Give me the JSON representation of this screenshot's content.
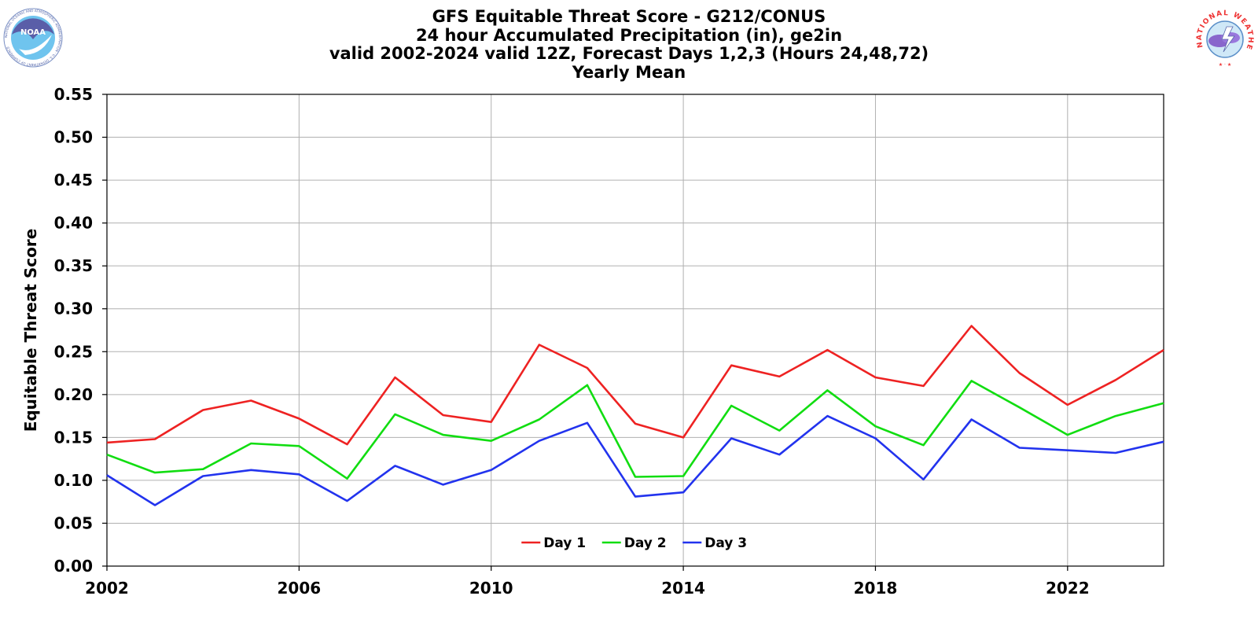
{
  "title_lines": [
    "GFS Equitable Threat Score - G212/CONUS",
    "24 hour Accumulated Precipitation (in), ge2in",
    "valid 2002-2024 valid 12Z, Forecast Days 1,2,3 (Hours 24,48,72)",
    "Yearly Mean"
  ],
  "logos": {
    "left": {
      "name": "noaa-logo",
      "text": "NOAA",
      "ring_text": "NATIONAL OCEANIC AND ATMOSPHERIC ADMINISTRATION · U.S. DEPARTMENT OF COMMERCE"
    },
    "right": {
      "name": "nws-logo",
      "ring_text": "NATIONAL WEATHER SERVICE"
    }
  },
  "chart_data": {
    "type": "line",
    "title": "GFS Equitable Threat Score - G212/CONUS",
    "xlabel": "",
    "ylabel": "Equitable Threat Score",
    "xlim": [
      2002,
      2024
    ],
    "ylim": [
      0,
      0.55
    ],
    "grid": true,
    "legend_position": "bottom-center",
    "x_ticks": [
      2002,
      2006,
      2010,
      2014,
      2018,
      2022
    ],
    "y_ticks": [
      "0.00",
      "0.05",
      "0.10",
      "0.15",
      "0.20",
      "0.25",
      "0.30",
      "0.35",
      "0.40",
      "0.45",
      "0.50",
      "0.55"
    ],
    "x": [
      2002,
      2003,
      2004,
      2005,
      2006,
      2007,
      2008,
      2009,
      2010,
      2011,
      2012,
      2013,
      2014,
      2015,
      2016,
      2017,
      2018,
      2019,
      2020,
      2021,
      2022,
      2023,
      2024
    ],
    "series": [
      {
        "name": "Day 1",
        "color": "#ee2222",
        "values": [
          0.144,
          0.148,
          0.182,
          0.193,
          0.172,
          0.142,
          0.22,
          0.176,
          0.168,
          0.258,
          0.231,
          0.166,
          0.15,
          0.234,
          0.221,
          0.252,
          0.22,
          0.21,
          0.28,
          0.225,
          0.188,
          0.217,
          0.252
        ]
      },
      {
        "name": "Day 2",
        "color": "#11dd11",
        "values": [
          0.13,
          0.109,
          0.113,
          0.143,
          0.14,
          0.102,
          0.177,
          0.153,
          0.146,
          0.171,
          0.211,
          0.104,
          0.105,
          0.187,
          0.158,
          0.205,
          0.163,
          0.141,
          0.216,
          0.185,
          0.153,
          0.175,
          0.19
        ]
      },
      {
        "name": "Day 3",
        "color": "#2233ee",
        "values": [
          0.106,
          0.071,
          0.105,
          0.112,
          0.107,
          0.076,
          0.117,
          0.095,
          0.112,
          0.146,
          0.167,
          0.081,
          0.086,
          0.149,
          0.13,
          0.175,
          0.149,
          0.101,
          0.171,
          0.138,
          0.135,
          0.132,
          0.145
        ]
      }
    ]
  }
}
